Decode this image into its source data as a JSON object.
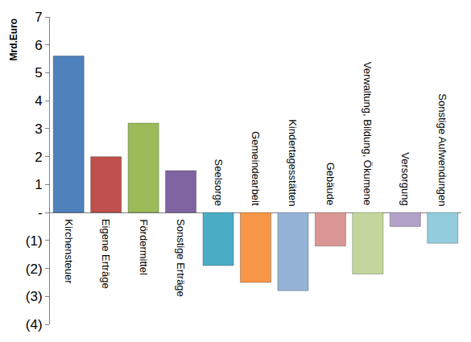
{
  "chart_data": {
    "type": "bar",
    "y_label": "Mrd.Euro",
    "categories": [
      "Kirchensteuer",
      "Eigene Erträge",
      "Fördermittel",
      "Sonstige Erträge",
      "Seelsorge",
      "Gemeindearbeit",
      "Kindertagesstätten",
      "Gebäude",
      "Verwaltung, Bildung, Ökumene",
      "Versorgung",
      "Sonstige Aufwendungen"
    ],
    "values": [
      5.6,
      2.0,
      3.2,
      1.5,
      -1.9,
      -2.5,
      -2.8,
      -1.2,
      -2.2,
      -0.5,
      -1.1
    ],
    "colors": [
      "#4f81bd",
      "#c0504d",
      "#9bbb59",
      "#8064a2",
      "#4bacc6",
      "#f79646",
      "#95b3d7",
      "#d99694",
      "#c3d69b",
      "#b3a2c7",
      "#93cddd"
    ],
    "ylim": [
      -4,
      7
    ],
    "yticks": [
      7,
      6,
      5,
      4,
      3,
      2,
      1,
      {
        "value": 0,
        "label": "-"
      },
      {
        "value": -1,
        "label": "(1)"
      },
      {
        "value": -2,
        "label": "(2)"
      },
      {
        "value": -3,
        "label": "(3)"
      },
      {
        "value": -4,
        "label": "(4)"
      }
    ],
    "grid": false
  }
}
